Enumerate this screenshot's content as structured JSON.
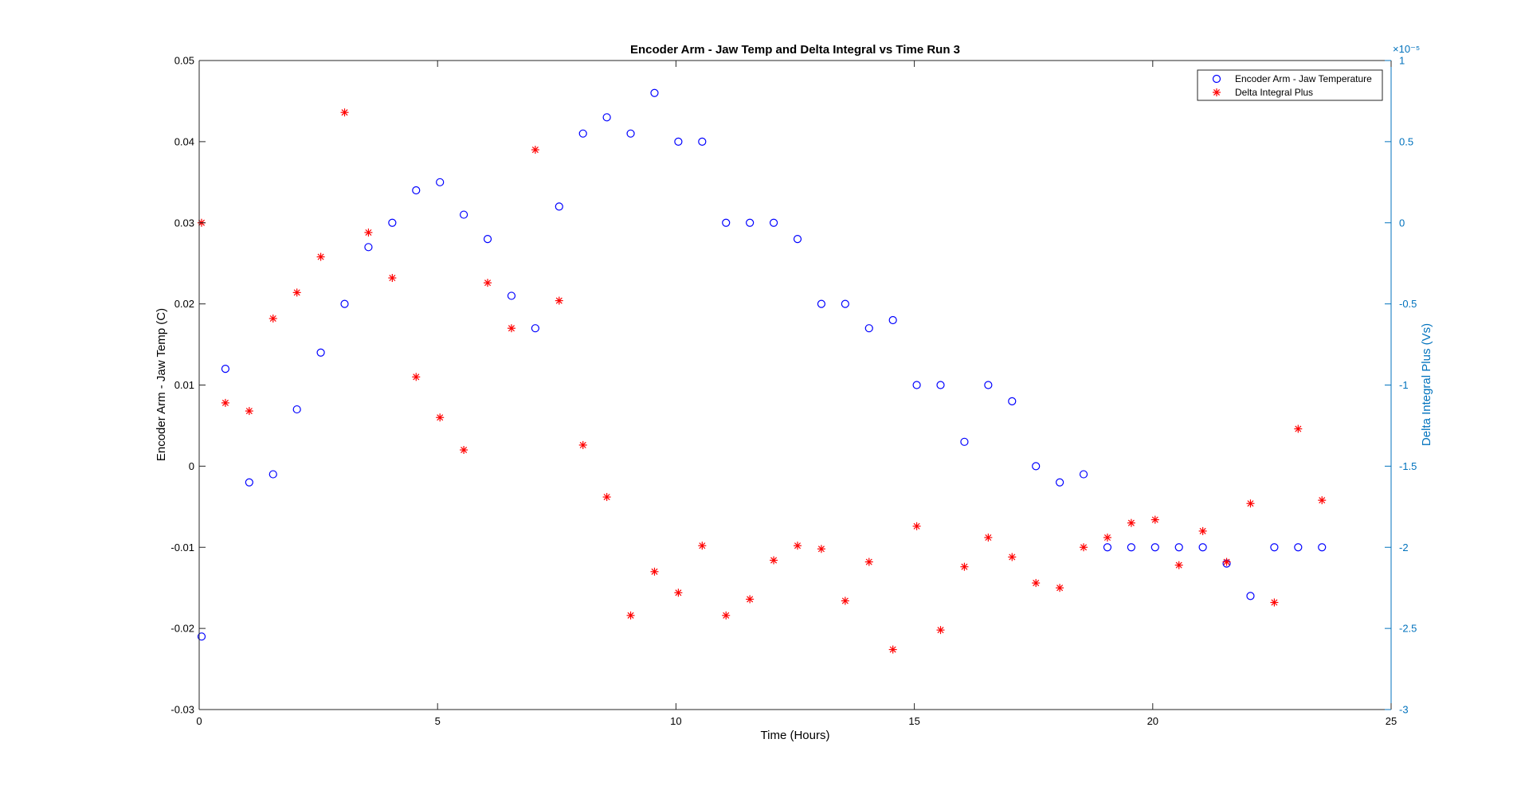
{
  "colors": {
    "left": "#0000ff",
    "right": "#ff0000",
    "right_axis": "#0072bd",
    "axis": "#262626",
    "background": "#ffffff"
  },
  "chart_data": {
    "type": "scatter",
    "title": "Encoder Arm - Jaw Temp and Delta Integral vs Time Run 3",
    "xlabel": "Time (Hours)",
    "ylabel_left": "Encoder Arm - Jaw Temp (C)",
    "ylabel_right": "Delta Integral Plus (Vs)",
    "right_exponent": "×10⁻⁵",
    "xlim": [
      0,
      25
    ],
    "ylim_left": [
      -0.03,
      0.05
    ],
    "ylim_right": [
      -3,
      1
    ],
    "xticks": [
      "0",
      "5",
      "10",
      "15",
      "20",
      "25"
    ],
    "yticks_left": [
      "-0.03",
      "-0.02",
      "-0.01",
      "0",
      "0.01",
      "0.02",
      "0.03",
      "0.04",
      "0.05"
    ],
    "yticks_right": [
      "-3",
      "-2.5",
      "-2",
      "-1.5",
      "-1",
      "-0.5",
      "0",
      "0.5",
      "1"
    ],
    "grid": false,
    "legend_position": "top-right",
    "series": [
      {
        "name": "Encoder Arm - Jaw Temperature",
        "axis": "left",
        "marker": "circle",
        "x": [
          0.05,
          0.55,
          1.05,
          1.55,
          2.05,
          2.55,
          3.05,
          3.55,
          4.05,
          4.55,
          5.05,
          5.55,
          6.05,
          6.55,
          7.05,
          7.55,
          8.05,
          8.55,
          9.05,
          9.55,
          10.05,
          10.55,
          11.05,
          11.55,
          12.05,
          12.55,
          13.05,
          13.55,
          14.05,
          14.55,
          15.05,
          15.55,
          16.05,
          16.55,
          17.05,
          17.55,
          18.05,
          18.55,
          19.05,
          19.55,
          20.05,
          20.55,
          21.05,
          21.55,
          22.05,
          22.55,
          23.05,
          23.55
        ],
        "y": [
          -0.021,
          0.012,
          -0.002,
          -0.001,
          0.007,
          0.014,
          0.02,
          0.027,
          0.03,
          0.034,
          0.035,
          0.031,
          0.028,
          0.021,
          0.017,
          0.032,
          0.041,
          0.043,
          0.041,
          0.046,
          0.04,
          0.04,
          0.03,
          0.03,
          0.03,
          0.028,
          0.02,
          0.02,
          0.017,
          0.018,
          0.01,
          0.01,
          0.003,
          0.01,
          0.008,
          0.0,
          -0.002,
          -0.001,
          -0.01,
          -0.01,
          -0.01,
          -0.01,
          -0.01,
          -0.012,
          -0.016,
          -0.01,
          -0.01,
          -0.01
        ]
      },
      {
        "name": "Delta Integral Plus",
        "axis": "right",
        "marker": "asterisk",
        "x": [
          0.05,
          0.55,
          1.05,
          1.55,
          2.05,
          2.55,
          3.05,
          3.55,
          4.05,
          4.55,
          5.05,
          5.55,
          6.05,
          6.55,
          7.05,
          7.55,
          8.05,
          8.55,
          9.05,
          9.55,
          10.05,
          10.55,
          11.05,
          11.55,
          12.05,
          12.55,
          13.05,
          13.55,
          14.05,
          14.55,
          15.05,
          15.55,
          16.05,
          16.55,
          17.05,
          17.55,
          18.05,
          18.55,
          19.05,
          19.55,
          20.05,
          20.55,
          21.05,
          21.55,
          22.05,
          22.55,
          23.05,
          23.55
        ],
        "y": [
          0,
          -1.11,
          -1.16,
          -0.59,
          -0.43,
          -0.21,
          0.68,
          -0.06,
          -0.34,
          -0.95,
          -1.2,
          -1.4,
          -0.37,
          -0.65,
          0.45,
          -0.48,
          -1.37,
          -1.69,
          -2.42,
          -2.15,
          -2.28,
          -1.99,
          -2.42,
          -2.32,
          -2.08,
          -1.99,
          -2.01,
          -2.33,
          -2.09,
          -2.63,
          -1.87,
          -2.51,
          -2.12,
          -1.94,
          -2.06,
          -2.22,
          -2.25,
          -2.0,
          -1.94,
          -1.85,
          -1.83,
          -2.11,
          -1.9,
          -2.09,
          -1.73,
          -2.34,
          -1.27,
          -1.71
        ]
      }
    ]
  }
}
